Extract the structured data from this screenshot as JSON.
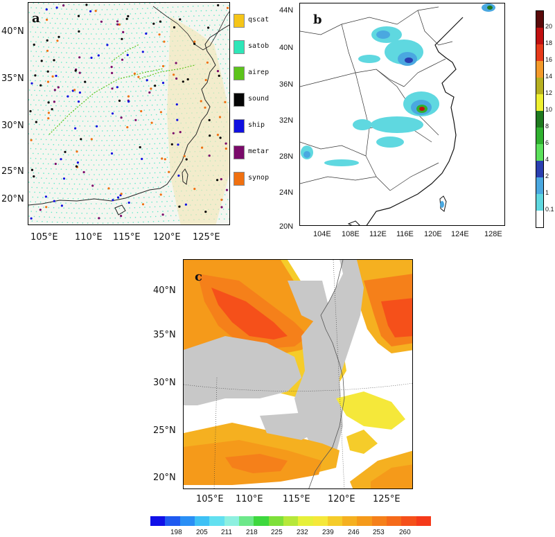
{
  "panel_a": {
    "label": "a",
    "lat_labels": [
      "40°N",
      "35°N",
      "30°N",
      "25°N",
      "20°N"
    ],
    "lon_labels": [
      "105°E",
      "110°E",
      "115°E",
      "120°E",
      "125°E"
    ],
    "legend": [
      {
        "name": "qscat",
        "color": "#f5c518"
      },
      {
        "name": "satob",
        "color": "#2ee6b8"
      },
      {
        "name": "airep",
        "color": "#5cc31b"
      },
      {
        "name": "sound",
        "color": "#050505"
      },
      {
        "name": "ship",
        "color": "#1010e0"
      },
      {
        "name": "metar",
        "color": "#7a0a6a"
      },
      {
        "name": "synop",
        "color": "#f07010"
      }
    ]
  },
  "panel_b": {
    "label": "b",
    "lat_labels": [
      "44N",
      "40N",
      "36N",
      "32N",
      "28N",
      "24N",
      "20N"
    ],
    "lon_labels": [
      "104E",
      "108E",
      "112E",
      "116E",
      "120E",
      "124E",
      "128E"
    ],
    "colorbar": [
      {
        "value": "20",
        "color": "#5a0a0a"
      },
      {
        "value": "18",
        "color": "#c01010"
      },
      {
        "value": "16",
        "color": "#e63a1a"
      },
      {
        "value": "14",
        "color": "#f39a2a"
      },
      {
        "value": "12",
        "color": "#b6b020"
      },
      {
        "value": "10",
        "color": "#eef030"
      },
      {
        "value": "8",
        "color": "#1f7a1f"
      },
      {
        "value": "6",
        "color": "#2fb02f"
      },
      {
        "value": "4",
        "color": "#5be05b"
      },
      {
        "value": "2",
        "color": "#2a3fb0"
      },
      {
        "value": "1",
        "color": "#4aa8e0"
      },
      {
        "value": "0.1",
        "color": "#5fd8e0"
      }
    ]
  },
  "panel_c": {
    "label": "c",
    "lat_labels": [
      "40°N",
      "35°N",
      "30°N",
      "25°N",
      "20°N"
    ],
    "lon_labels": [
      "105°E",
      "110°E",
      "115°E",
      "120°E",
      "125°E"
    ],
    "colorbar_colors": [
      "#1010e8",
      "#1f5af0",
      "#2a8ff5",
      "#3ec1f5",
      "#62e0f0",
      "#8ef0e0",
      "#6de88a",
      "#3ed83e",
      "#7ee03a",
      "#b6e83a",
      "#e6f03a",
      "#f5e83a",
      "#f5cc2a",
      "#f5b020",
      "#f59a1a",
      "#f5801a",
      "#f56a1a",
      "#f5501a",
      "#f53a1a"
    ],
    "colorbar_labels": [
      "198",
      "205",
      "211",
      "218",
      "225",
      "232",
      "239",
      "246",
      "253",
      "260"
    ]
  }
}
